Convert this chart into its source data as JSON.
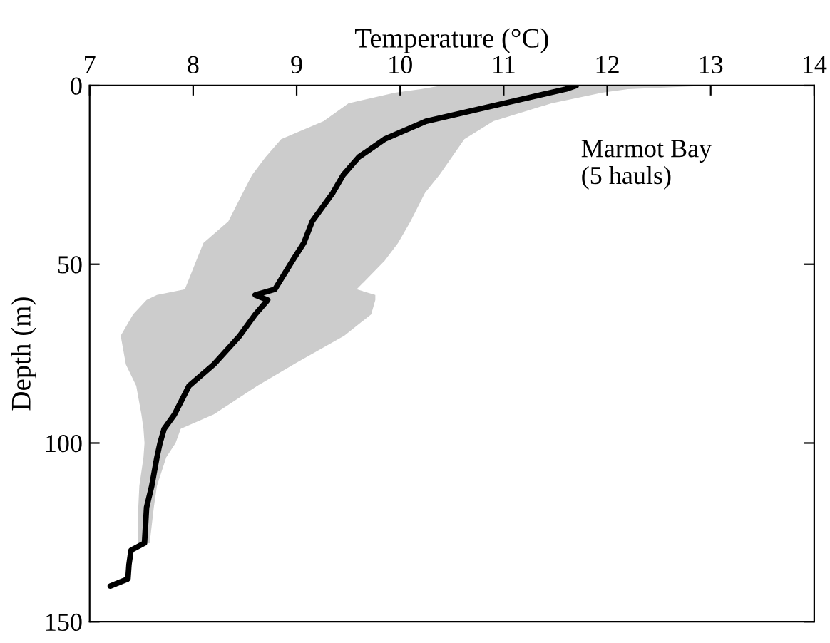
{
  "chart_data": {
    "type": "line",
    "orientation": "horizontal",
    "xlabel": "Temperature (°C)",
    "ylabel": "Depth (m)",
    "xlim": [
      7,
      14
    ],
    "xticks": [
      7,
      8,
      9,
      10,
      11,
      12,
      13,
      14
    ],
    "ylim": [
      150,
      0
    ],
    "yticks": [
      0,
      50,
      100,
      150
    ],
    "grid": false,
    "annotations": [
      "Marmot Bay\n(5 hauls)"
    ],
    "x": [
      0,
      1,
      2,
      5,
      10,
      15,
      20,
      25,
      30,
      38,
      44,
      49,
      57,
      58.6,
      60,
      64,
      70,
      78,
      84,
      92,
      96,
      100,
      104,
      112,
      118,
      128,
      130,
      134,
      138,
      140
    ],
    "series": [
      {
        "color": "#000000",
        "values": [
          11.7,
          11.6,
          11.45,
          11.0,
          10.25,
          9.85,
          9.6,
          9.45,
          9.35,
          9.15,
          9.07,
          8.96,
          8.79,
          8.6,
          8.72,
          8.6,
          8.45,
          8.2,
          7.96,
          7.82,
          7.72,
          7.68,
          7.65,
          7.6,
          7.55,
          7.53,
          7.4,
          7.38,
          7.37,
          7.2
        ],
        "lower": [
          10.4,
          10.2,
          9.95,
          9.5,
          9.26,
          8.85,
          8.7,
          8.57,
          8.48,
          8.34,
          8.1,
          8.03,
          7.92,
          7.65,
          7.55,
          7.42,
          7.3,
          7.35,
          7.45,
          7.5,
          7.52,
          7.53,
          7.52,
          7.48,
          7.47,
          7.47,
          null,
          null,
          null,
          null
        ],
        "upper": [
          13.0,
          12.2,
          11.95,
          11.46,
          10.9,
          10.62,
          10.5,
          10.38,
          10.24,
          10.1,
          9.98,
          9.85,
          9.58,
          9.76,
          9.76,
          9.72,
          9.46,
          8.97,
          8.62,
          8.2,
          7.88,
          7.83,
          7.74,
          7.65,
          7.62,
          7.58,
          null,
          null,
          null,
          null
        ]
      }
    ]
  }
}
